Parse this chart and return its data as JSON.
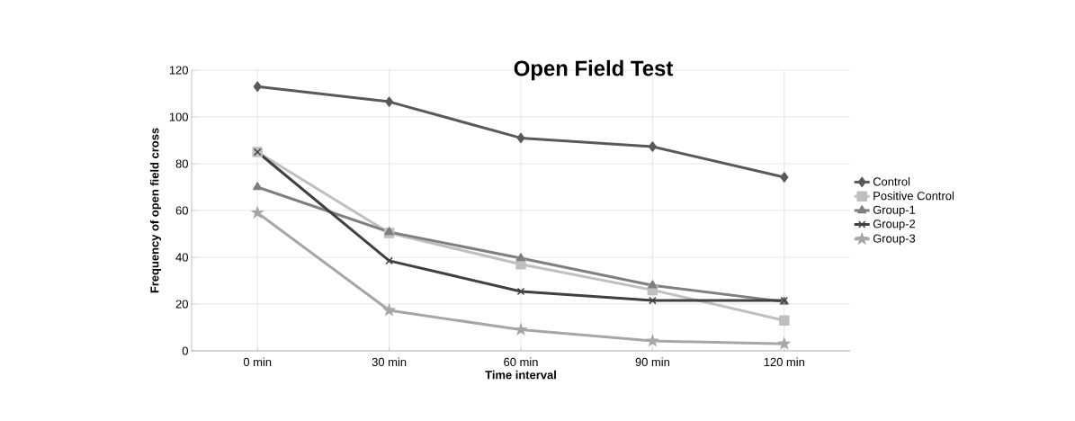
{
  "chart_data": {
    "type": "line",
    "title": "Open Field Test",
    "xlabel": "Time interval",
    "ylabel": "Frequency of open field cross",
    "categories": [
      "0 min",
      "30 min",
      "60 min",
      "90 min",
      "120 min"
    ],
    "series": [
      {
        "name": "Control",
        "color": "#595959",
        "marker": "diamond",
        "values": [
          113,
          106.5,
          91,
          87.3,
          74.2
        ]
      },
      {
        "name": "Positive Control",
        "color": "#bfbfbf",
        "marker": "square",
        "values": [
          85,
          50.4,
          37,
          26,
          13
        ]
      },
      {
        "name": "Group-1",
        "color": "#7f7f7f",
        "marker": "triangle",
        "values": [
          70,
          50.8,
          39.6,
          28,
          21
        ]
      },
      {
        "name": "Group-2",
        "color": "#404040",
        "marker": "cross",
        "values": [
          85,
          38.5,
          25.4,
          21.5,
          21.5
        ]
      },
      {
        "name": "Group-3",
        "color": "#a6a6a6",
        "marker": "star",
        "values": [
          59,
          17.3,
          9,
          4.2,
          3
        ]
      }
    ],
    "ylim": [
      0,
      120
    ],
    "yticks": [
      0,
      20,
      40,
      60,
      80,
      100,
      120
    ],
    "grid": true,
    "legend": "right",
    "line_style": "solid"
  }
}
